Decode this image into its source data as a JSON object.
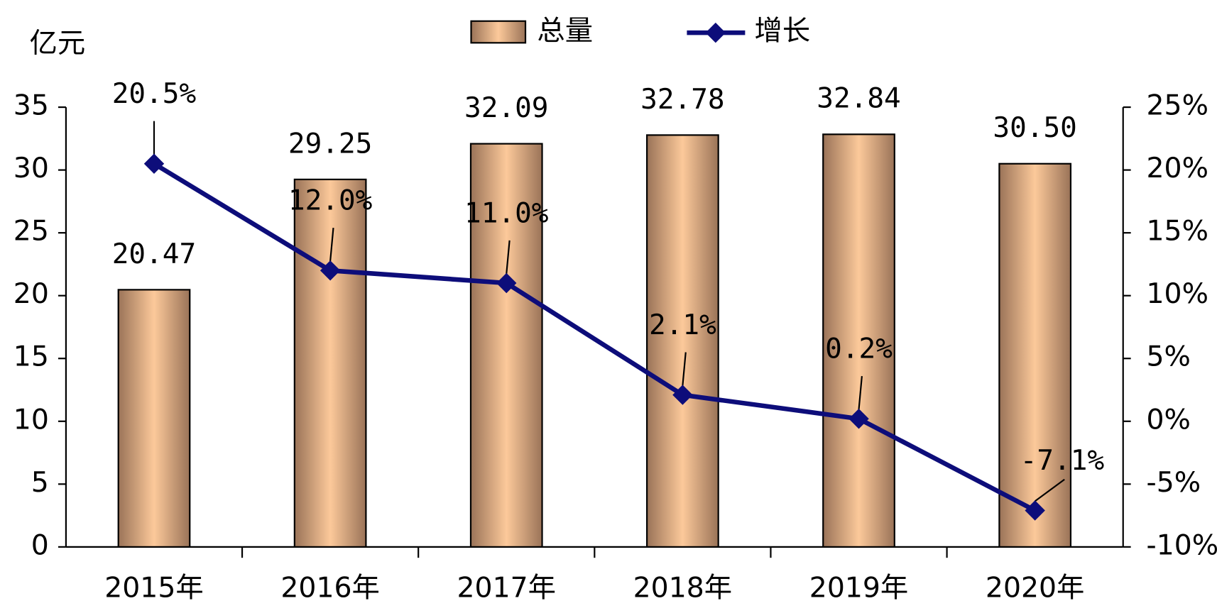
{
  "chart_data": {
    "type": "bar-line",
    "y_label": "亿元",
    "categories": [
      "2015年",
      "2016年",
      "2017年",
      "2018年",
      "2019年",
      "2020年"
    ],
    "series": [
      {
        "name": "总量",
        "color": "#fcc99a",
        "values": [
          20.47,
          29.25,
          32.09,
          32.78,
          32.84,
          30.5
        ],
        "value_labels": [
          "20.47",
          "29.25",
          "32.09",
          "32.78",
          "32.84",
          "30.50"
        ]
      },
      {
        "name": "增长",
        "color": "#0d0d7a",
        "axis": "y2",
        "values": [
          20.5,
          12.0,
          11.0,
          2.1,
          0.2,
          -7.1
        ],
        "value_labels": [
          "20.5%",
          "12.0%",
          "11.0%",
          "2.1%",
          "0.2%",
          "-7.1%"
        ]
      }
    ],
    "ylim": [
      0,
      35
    ],
    "yticks": [
      0,
      5,
      10,
      15,
      20,
      25,
      30,
      35
    ],
    "y2lim": [
      -10,
      25
    ],
    "y2ticks": [
      {
        "value": -10,
        "label": "-10%"
      },
      {
        "value": -5,
        "label": "-5%"
      },
      {
        "value": 0,
        "label": "0%"
      },
      {
        "value": 5,
        "label": "5%"
      },
      {
        "value": 10,
        "label": "10%"
      },
      {
        "value": 15,
        "label": "15%"
      },
      {
        "value": 20,
        "label": "20%"
      },
      {
        "value": 25,
        "label": "25%"
      }
    ],
    "legend": "top",
    "grid": false
  }
}
